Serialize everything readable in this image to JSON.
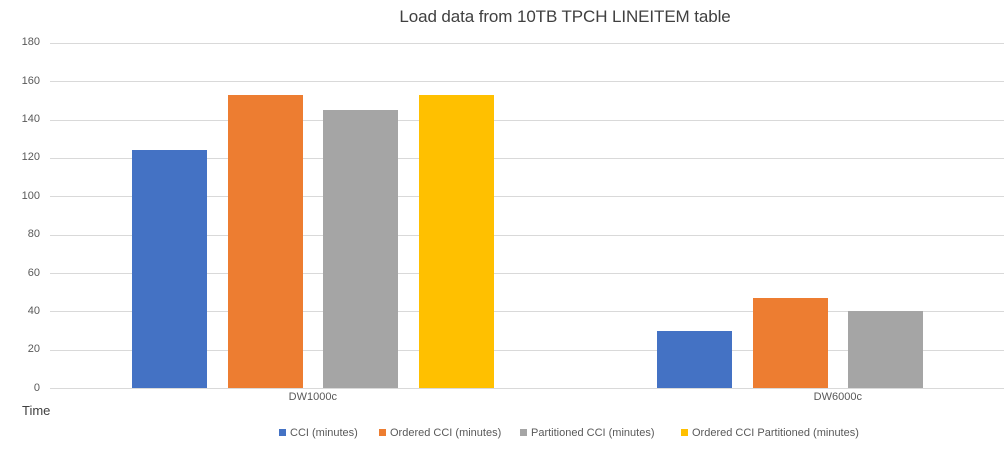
{
  "chart_data": {
    "type": "bar",
    "title": "Load data from 10TB TPCH LINEITEM table",
    "ylabel": "Time",
    "categories": [
      "DW1000c",
      "DW6000c"
    ],
    "series": [
      {
        "name": "CCI (minutes)",
        "color": "#4472C4",
        "values": [
          124,
          30
        ]
      },
      {
        "name": "Ordered CCI (minutes)",
        "color": "#ED7D31",
        "values": [
          153,
          47
        ]
      },
      {
        "name": "Partitioned CCI (minutes)",
        "color": "#A5A5A5",
        "values": [
          145,
          40
        ]
      },
      {
        "name": "Ordered CCI Partitioned (minutes)",
        "color": "#FFC000",
        "values": [
          153,
          null
        ]
      }
    ],
    "ylim": [
      0,
      180
    ],
    "ytick_step": 20,
    "grid": true,
    "legend_position": "bottom",
    "colors": {
      "gridline": "#d9d9d9",
      "axis_text": "#595959",
      "title_text": "#404040"
    }
  }
}
